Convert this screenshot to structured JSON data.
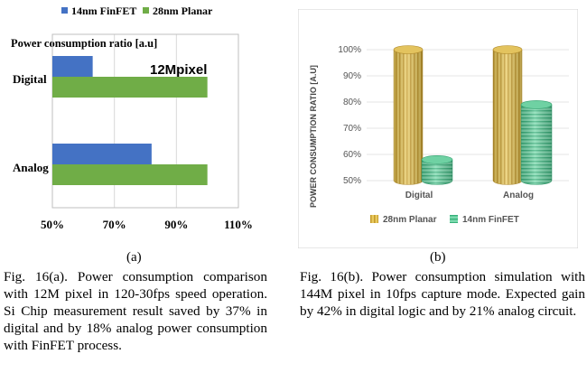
{
  "colors": {
    "finfet_blue": "#4472c4",
    "planar_green": "#70ad47",
    "gold": "#e3c35e",
    "mint": "#6fd1a3",
    "grid": "#d9d9d9"
  },
  "chart_data": [
    {
      "type": "bar",
      "orientation": "horizontal",
      "panel": "(a)",
      "title": "Power consumption ratio [a.u]",
      "annotation": "12Mpixel",
      "categories": [
        "Digital",
        "Analog"
      ],
      "series": [
        {
          "name": "14nm FinFET",
          "color": "#4472c4",
          "values": [
            63,
            82
          ]
        },
        {
          "name": "28nm Planar",
          "color": "#70ad47",
          "values": [
            100,
            100
          ]
        }
      ],
      "xlim": [
        50,
        110
      ],
      "xticks": [
        "50%",
        "70%",
        "90%",
        "110%"
      ],
      "xtick_values": [
        50,
        70,
        90,
        110
      ],
      "legend": "top",
      "grid": true
    },
    {
      "type": "bar",
      "style": "3d-cylinder",
      "panel": "(b)",
      "ylabel": "POWER CONSUMPTION RATIO [A.U]",
      "categories": [
        "Digital",
        "Analog"
      ],
      "series": [
        {
          "name": "28nm Planar",
          "color": "#e3c35e",
          "values": [
            100,
            100
          ]
        },
        {
          "name": "14nm FinFET",
          "color": "#6fd1a3",
          "values": [
            58,
            79
          ]
        }
      ],
      "ylim": [
        50,
        100
      ],
      "yticks": [
        "100%",
        "90%",
        "80%",
        "70%",
        "60%",
        "50%"
      ],
      "ytick_values": [
        100,
        90,
        80,
        70,
        60,
        50
      ],
      "legend": "bottom",
      "grid": true
    }
  ],
  "labels": {
    "panel_a": "(a)",
    "panel_b": "(b)"
  },
  "captions": {
    "a": "Fig. 16(a). Power consumption comparison with 12M pixel in 120-30fps speed operation. Si Chip measurement result saved by 37% in digital and by 18% analog power consumption with FinFET process.",
    "b": "Fig. 16(b). Power consumption simulation with 144M pixel in 10fps capture mode. Expected gain by 42% in digital logic and by 21% analog circuit."
  }
}
